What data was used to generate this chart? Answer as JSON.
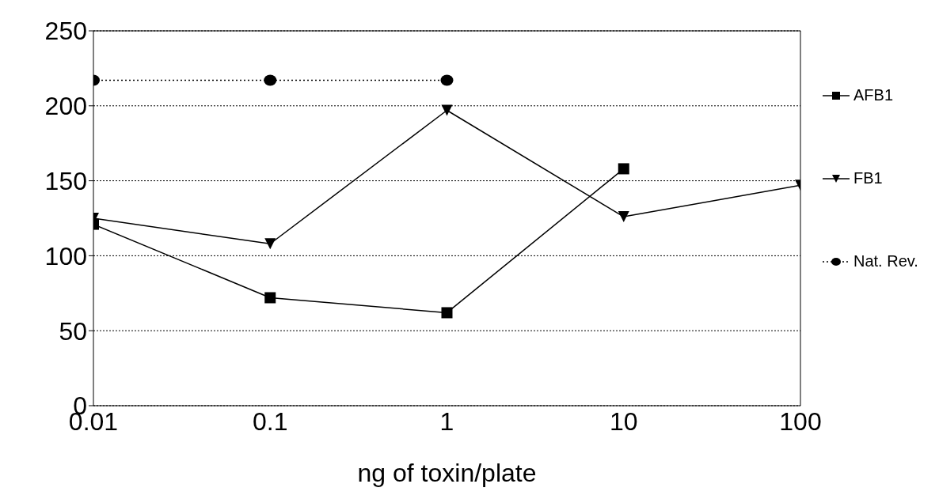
{
  "chart_data": {
    "type": "line",
    "xlabel": "ng of toxin/plate",
    "log": "x",
    "xlim": [
      0.01,
      100
    ],
    "xticks": [
      0.01,
      0.1,
      1,
      10,
      100
    ],
    "ylim": [
      0,
      250
    ],
    "yticks": [
      0,
      50,
      100,
      150,
      200,
      250
    ],
    "grid": "y",
    "legend": "right",
    "series": [
      {
        "name": "AFB1",
        "color": "#000000",
        "marker": "square",
        "line_style": "solid",
        "x": [
          0.01,
          0.1,
          1,
          10
        ],
        "values": [
          121,
          72,
          62,
          158
        ]
      },
      {
        "name": "FB1",
        "color": "#000000",
        "marker": "triangle",
        "line_style": "solid",
        "x": [
          0.01,
          0.1,
          1,
          10,
          100
        ],
        "values": [
          125,
          108,
          197,
          126,
          147
        ]
      },
      {
        "name": "Nat. Rev.",
        "color": "#000000",
        "marker": "circle",
        "line_style": "dotted",
        "x": [
          0.01,
          0.1,
          1
        ],
        "values": [
          217,
          217,
          217
        ]
      }
    ]
  }
}
